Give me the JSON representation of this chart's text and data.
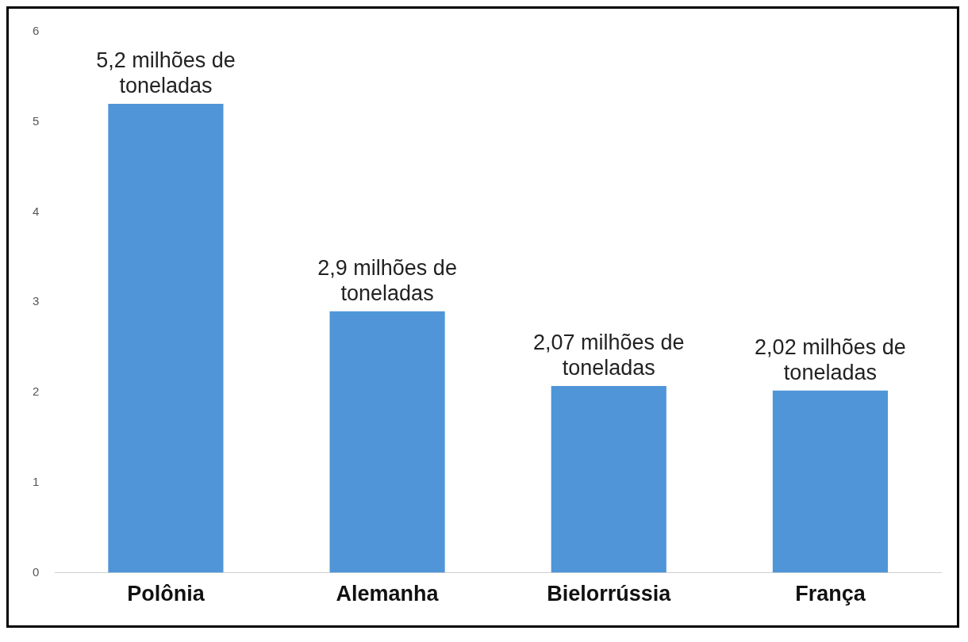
{
  "chart_data": {
    "type": "bar",
    "categories": [
      "Polônia",
      "Alemanha",
      "Bielorrússia",
      "França"
    ],
    "values": [
      5.2,
      2.9,
      2.07,
      2.02
    ],
    "color": "#4f95d8",
    "value_labels": [
      "5,2 milhões de toneladas",
      "2,9 milhões de toneladas",
      "2,07 milhões de toneladas",
      "2,02 milhões de toneladas"
    ],
    "ylim": [
      0,
      6
    ],
    "yticks": [
      0,
      1,
      2,
      3,
      4,
      5,
      6
    ],
    "grid": false,
    "legend": false
  }
}
